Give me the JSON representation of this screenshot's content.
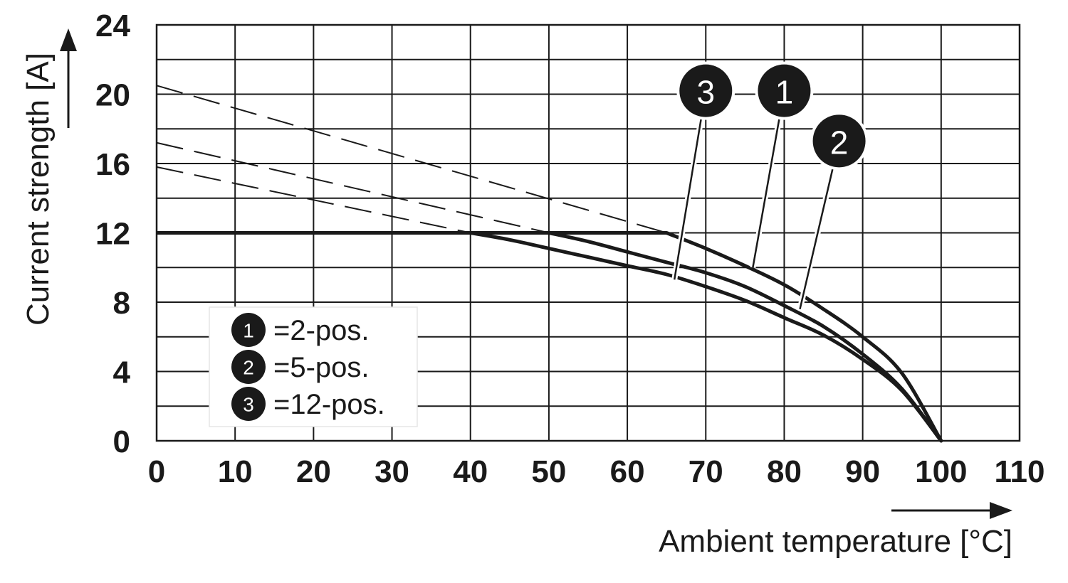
{
  "chart_data": {
    "type": "line",
    "xlabel": "Ambient temperature [°C]",
    "ylabel": "Current strength [A]",
    "xlim": [
      0,
      110
    ],
    "ylim": [
      0,
      24
    ],
    "x_ticks": [
      "0",
      "10",
      "20",
      "30",
      "40",
      "50",
      "60",
      "70",
      "80",
      "90",
      "100",
      "110"
    ],
    "y_ticks": [
      "0",
      "4",
      "8",
      "12",
      "16",
      "20",
      "24"
    ],
    "x_tick_values": [
      0,
      10,
      20,
      30,
      40,
      50,
      60,
      70,
      80,
      90,
      100,
      110
    ],
    "y_tick_values": [
      0,
      4,
      8,
      12,
      16,
      20,
      24
    ],
    "x_minor_step": 10,
    "y_minor_step": 2,
    "grid": true,
    "line_color": "#1a1a1a",
    "limit_line": {
      "y": 12,
      "x": [
        0,
        65
      ]
    },
    "series": [
      {
        "id": "1",
        "name": "=2-pos.",
        "x": [
          65,
          70,
          75,
          80,
          85,
          90,
          95,
          100
        ],
        "y": [
          12.0,
          11.1,
          10.1,
          9.0,
          7.6,
          6.0,
          3.9,
          0
        ],
        "dashed_x": [
          0,
          10,
          20,
          30,
          40,
          50,
          60,
          65
        ],
        "dashed_y": [
          20.5,
          19.4,
          18.2,
          16.9,
          15.7,
          14.5,
          12.9,
          12.0
        ],
        "label_at": [
          76,
          10
        ]
      },
      {
        "id": "2",
        "name": "=5-pos.",
        "x": [
          50,
          55,
          60,
          65,
          70,
          75,
          80,
          85,
          90,
          95,
          100
        ],
        "y": [
          12.0,
          11.5,
          10.9,
          10.3,
          9.7,
          8.9,
          7.8,
          6.6,
          5.0,
          3.0,
          0
        ],
        "dashed_x": [
          0,
          10,
          20,
          30,
          40,
          50
        ],
        "dashed_y": [
          17.2,
          16.2,
          15.1,
          14.0,
          13.1,
          12.0
        ],
        "label_at": [
          82,
          7.6
        ]
      },
      {
        "id": "3",
        "name": "=12-pos.",
        "x": [
          40,
          45,
          50,
          55,
          60,
          65,
          70,
          75,
          80,
          85,
          90,
          95,
          100
        ],
        "y": [
          12.0,
          11.6,
          11.1,
          10.6,
          10.1,
          9.6,
          8.9,
          8.1,
          7.1,
          6.1,
          4.7,
          2.9,
          0
        ],
        "dashed_x": [
          0,
          10,
          20,
          30,
          40
        ],
        "dashed_y": [
          15.8,
          14.9,
          14.0,
          13.0,
          12.0
        ],
        "label_at": [
          66,
          9.3
        ]
      }
    ],
    "legend": {
      "position": "bottom-left",
      "items": [
        {
          "badge": "1",
          "text": "=2-pos."
        },
        {
          "badge": "2",
          "text": "=5-pos."
        },
        {
          "badge": "3",
          "text": "=12-pos."
        }
      ]
    },
    "callouts": [
      {
        "badge": "3",
        "series": "3",
        "at": [
          70,
          20.2
        ]
      },
      {
        "badge": "1",
        "series": "1",
        "at": [
          80,
          20.2
        ]
      },
      {
        "badge": "2",
        "series": "2",
        "at": [
          87,
          17.3
        ]
      }
    ]
  }
}
